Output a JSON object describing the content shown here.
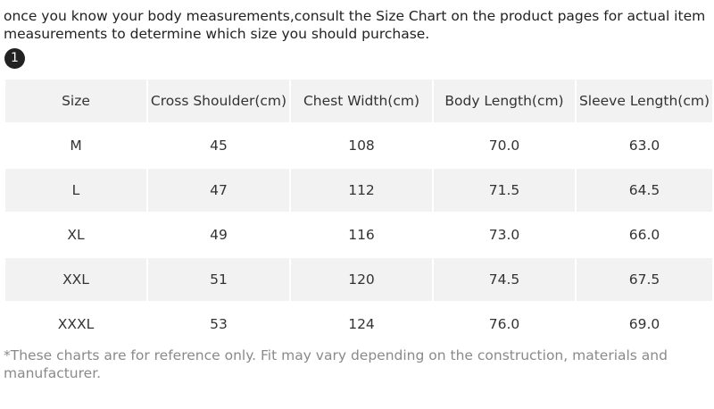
{
  "intro": "once you know your body measurements,consult the Size Chart on the product pages for actual item measurements to determine which size you should purchase.",
  "badge": "1",
  "table": {
    "header": [
      "Size",
      "Cross Shoulder(cm)",
      "Chest Width(cm)",
      "Body Length(cm)",
      "Sleeve Length(cm)"
    ],
    "rows": [
      [
        "M",
        "45",
        "108",
        "70.0",
        "63.0"
      ],
      [
        "L",
        "47",
        "112",
        "71.5",
        "64.5"
      ],
      [
        "XL",
        "49",
        "116",
        "73.0",
        "66.0"
      ],
      [
        "XXL",
        "51",
        "120",
        "74.5",
        "67.5"
      ],
      [
        "XXXL",
        "53",
        "124",
        "76.0",
        "69.0"
      ]
    ]
  },
  "note": "*These charts are for reference only. Fit may vary depending on the construction, materials and manufacturer."
}
